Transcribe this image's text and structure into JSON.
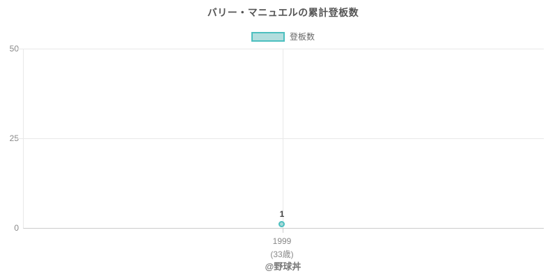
{
  "chart_data": {
    "type": "line",
    "title": "バリー・マニュエルの累計登板数",
    "legend": {
      "position": "top",
      "items": [
        {
          "label": "登板数"
        }
      ]
    },
    "x": [
      {
        "year": "1999",
        "age": "(33歳)"
      }
    ],
    "series": [
      {
        "name": "登板数",
        "values": [
          1
        ]
      }
    ],
    "point_labels": [
      "1"
    ],
    "ylim": [
      0,
      50
    ],
    "yticks": [
      "50",
      "25",
      "0"
    ],
    "grid": true,
    "attribution": "@野球丼",
    "colors": {
      "point-border": "#4CBFBF",
      "point-fill": "#A8DADA",
      "legend-border": "#4CBFBF",
      "legend-fill": "#B2DEDE",
      "legend-text": "#666666",
      "title-text": "#555555",
      "axis-text": "#888888",
      "grid-line": "#E8E8E8",
      "axis-line": "#CCCCCC",
      "value-text": "#444444",
      "attribution-text": "#777777"
    }
  }
}
